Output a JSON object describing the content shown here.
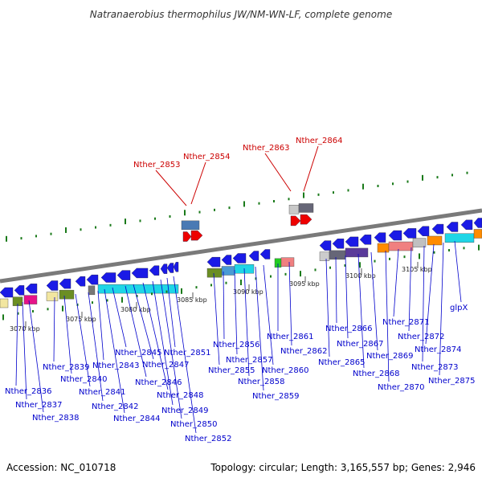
{
  "title": "Natranaerobius thermophilus JW/NM-WN-LF, complete genome",
  "footer": {
    "accession": "Accession: NC_010718",
    "info": "Topology: circular; Length: 3,165,557 bp; Genes: 2,946"
  },
  "colors": {
    "highlight": "#cc0000",
    "normal": "#0000cc",
    "backbone": "#7a7a7a",
    "ticks": "#1a7a1a"
  },
  "kbp_labels": [
    "3070 kbp",
    "3075 kbp",
    "3080 kbp",
    "3085 kbp",
    "3090 kbp",
    "3095 kbp",
    "3100 kbp",
    "3105 kbp"
  ],
  "highlighted_genes": [
    "Nther_2853",
    "Nther_2854",
    "Nther_2863",
    "Nther_2864"
  ],
  "gene_labels": [
    "Nther_2836",
    "Nther_2837",
    "Nther_2838",
    "Nther_2839",
    "Nther_2840",
    "Nther_2841",
    "Nther_2842",
    "Nther_2843",
    "Nther_2844",
    "Nther_2845",
    "Nther_2846",
    "Nther_2847",
    "Nther_2848",
    "Nther_2849",
    "Nther_2850",
    "Nther_2851",
    "Nther_2852",
    "Nther_2855",
    "Nther_2856",
    "Nther_2857",
    "Nther_2858",
    "Nther_2859",
    "Nther_2860",
    "Nther_2861",
    "Nther_2862",
    "Nther_2865",
    "Nther_2866",
    "Nther_2867",
    "Nther_2868",
    "Nther_2869",
    "Nther_2870",
    "Nther_2871",
    "Nther_2872",
    "Nther_2873",
    "Nther_2874",
    "Nther_2875",
    "glpX"
  ]
}
